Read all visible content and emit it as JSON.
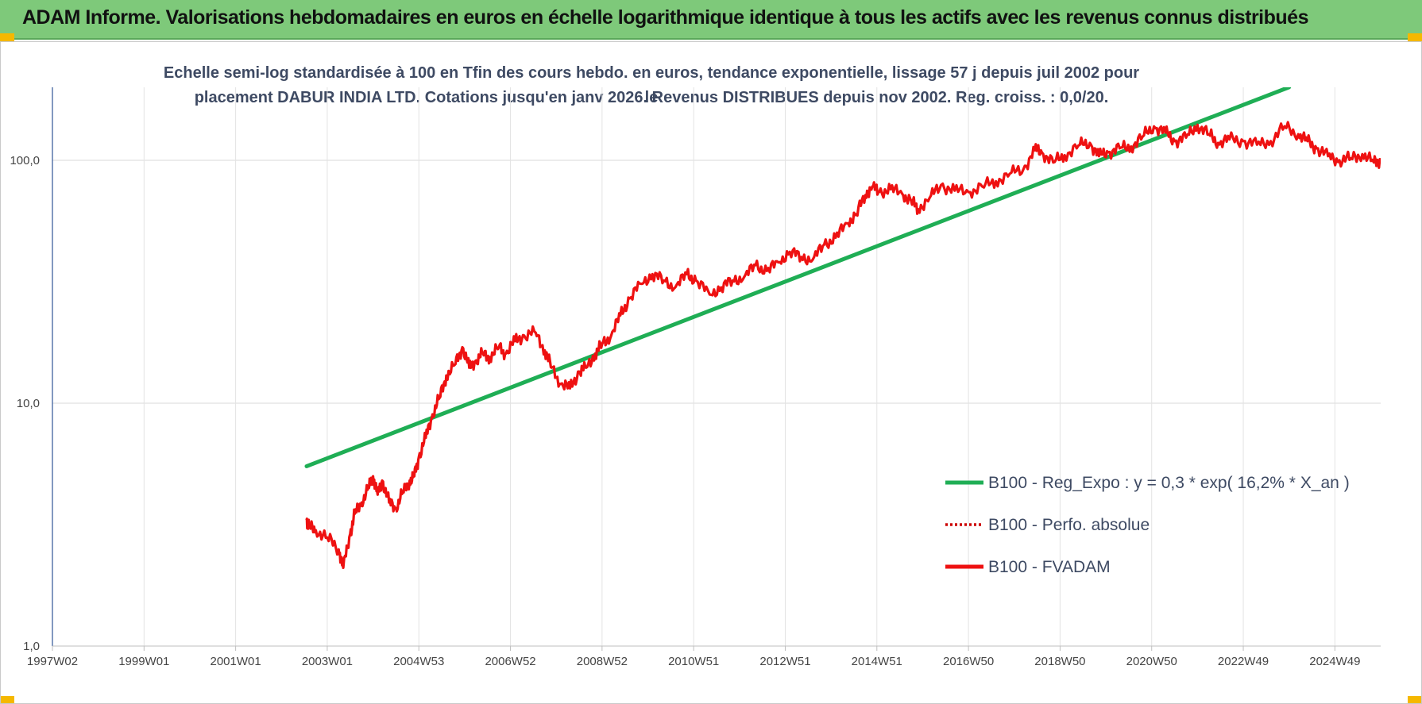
{
  "header": {
    "title": "ADAM Informe. Valorisations hebdomadaires en euros en échelle logarithmique identique à tous les actifs avec les revenus connus distribués"
  },
  "colors": {
    "banner": "#7ec97a",
    "corner": "#f5b800",
    "trend": "#1fae55",
    "fvadam": "#ee1111",
    "perfo": "#cc0000"
  },
  "chart_data": {
    "type": "line",
    "title_line1": "Echelle semi-log standardisée à 100 en Tfin des cours hebdo. en euros, tendance exponentielle, lissage 57 j depuis juil 2002 pour le",
    "title_line2": "placement DABUR INDIA LTD. Cotations jusqu'en janv 2026. Revenus DISTRIBUES depuis nov 2002. Reg. croiss. : 0,0/20.",
    "y_scale": "log",
    "ylim": [
      1,
      200
    ],
    "xlim": [
      1997.0,
      2026.0
    ],
    "y_ticks": [
      {
        "value": 1,
        "label": "1,0"
      },
      {
        "value": 10,
        "label": "10,0"
      },
      {
        "value": 100,
        "label": "100,0"
      }
    ],
    "x_ticks": [
      {
        "value": 1997.0,
        "label": "1997W02"
      },
      {
        "value": 1999.0,
        "label": "1999W01"
      },
      {
        "value": 2001.0,
        "label": "2001W01"
      },
      {
        "value": 2003.0,
        "label": "2003W01"
      },
      {
        "value": 2005.0,
        "label": "2004W53"
      },
      {
        "value": 2007.0,
        "label": "2006W52"
      },
      {
        "value": 2009.0,
        "label": "2008W52"
      },
      {
        "value": 2011.0,
        "label": "2010W51"
      },
      {
        "value": 2013.0,
        "label": "2012W51"
      },
      {
        "value": 2015.0,
        "label": "2014W51"
      },
      {
        "value": 2017.0,
        "label": "2016W50"
      },
      {
        "value": 2019.0,
        "label": "2018W50"
      },
      {
        "value": 2021.0,
        "label": "2020W50"
      },
      {
        "value": 2023.0,
        "label": "2022W49"
      },
      {
        "value": 2025.0,
        "label": "2024W49"
      }
    ],
    "grid": "vertical and horizontal",
    "legend_position": "bottom-right",
    "series": [
      {
        "name": "B100 - Reg_Expo : y = 0,3 * exp( 16,2% *  X_an )",
        "style": "solid-thick",
        "x": [
          2002.55,
          2024.0
        ],
        "y": [
          5.5,
          200
        ]
      },
      {
        "name": "B100 - Perfo. absolue",
        "style": "dotted",
        "x": [],
        "y": []
      },
      {
        "name": "B100 - FVADAM",
        "style": "solid",
        "x": [
          2002.55,
          2002.6,
          2002.75,
          2003.0,
          2003.25,
          2003.35,
          2003.5,
          2003.6,
          2003.75,
          2003.9,
          2004.0,
          2004.1,
          2004.2,
          2004.35,
          2004.5,
          2004.65,
          2004.8,
          2004.9,
          2005.0,
          2005.15,
          2005.3,
          2005.45,
          2005.6,
          2005.8,
          2005.95,
          2006.1,
          2006.25,
          2006.4,
          2006.55,
          2006.75,
          2006.9,
          2007.1,
          2007.3,
          2007.55,
          2007.75,
          2007.9,
          2008.1,
          2008.3,
          2008.5,
          2008.65,
          2008.85,
          2009.0,
          2009.2,
          2009.4,
          2009.6,
          2009.85,
          2010.1,
          2010.35,
          2010.6,
          2010.85,
          2011.05,
          2011.35,
          2011.6,
          2011.85,
          2012.1,
          2012.35,
          2012.6,
          2012.85,
          2013.1,
          2013.35,
          2013.6,
          2013.85,
          2014.1,
          2014.35,
          2014.55,
          2014.75,
          2014.9,
          2015.05,
          2015.3,
          2015.55,
          2015.75,
          2015.9,
          2016.15,
          2016.4,
          2016.7,
          2017.0,
          2017.3,
          2017.6,
          2017.9,
          2018.2,
          2018.45,
          2018.6,
          2018.85,
          2019.1,
          2019.4,
          2019.65,
          2019.85,
          2020.05,
          2020.3,
          2020.55,
          2020.8,
          2021.05,
          2021.3,
          2021.5,
          2021.75,
          2022.0,
          2022.25,
          2022.45,
          2022.7,
          2023.0,
          2023.3,
          2023.6,
          2023.9,
          2024.2,
          2024.4,
          2024.6,
          2024.85,
          2025.1,
          2025.35,
          2025.6,
          2025.85,
          2026.0
        ],
        "y": [
          3.3,
          3.1,
          3.0,
          2.8,
          2.5,
          2.1,
          2.9,
          3.5,
          3.9,
          4.5,
          5.0,
          4.2,
          4.8,
          3.9,
          3.7,
          4.3,
          4.8,
          5.0,
          6.0,
          7.2,
          9.0,
          10.5,
          13.0,
          14.5,
          17.0,
          14.0,
          15.0,
          16.0,
          15.5,
          17.0,
          16.0,
          18.0,
          19.0,
          19.5,
          16.5,
          14.0,
          12.0,
          11.5,
          13.5,
          14.0,
          16.0,
          17.5,
          19.0,
          23.0,
          27.0,
          31.0,
          34.0,
          32.0,
          30.0,
          34.0,
          32.0,
          28.0,
          30.0,
          32.0,
          33.0,
          37.0,
          35.0,
          38.0,
          42.0,
          40.0,
          39.0,
          45.0,
          48.0,
          55.0,
          60.0,
          72.0,
          78.0,
          74.0,
          76.0,
          73.0,
          68.0,
          63.0,
          70.0,
          79.0,
          75.0,
          74.0,
          78.0,
          82.0,
          88.0,
          92.0,
          110.0,
          108.0,
          98.0,
          105.0,
          115.0,
          118.0,
          104.0,
          108.0,
          112.0,
          114.0,
          125.0,
          138.0,
          130.0,
          120.0,
          124.0,
          140.0,
          128.0,
          118.0,
          122.0,
          120.0,
          116.0,
          120.0,
          138.0,
          128.0,
          120.0,
          112.0,
          104.0,
          100.0,
          102.0,
          106.0,
          98.0,
          100.0
        ]
      }
    ]
  }
}
